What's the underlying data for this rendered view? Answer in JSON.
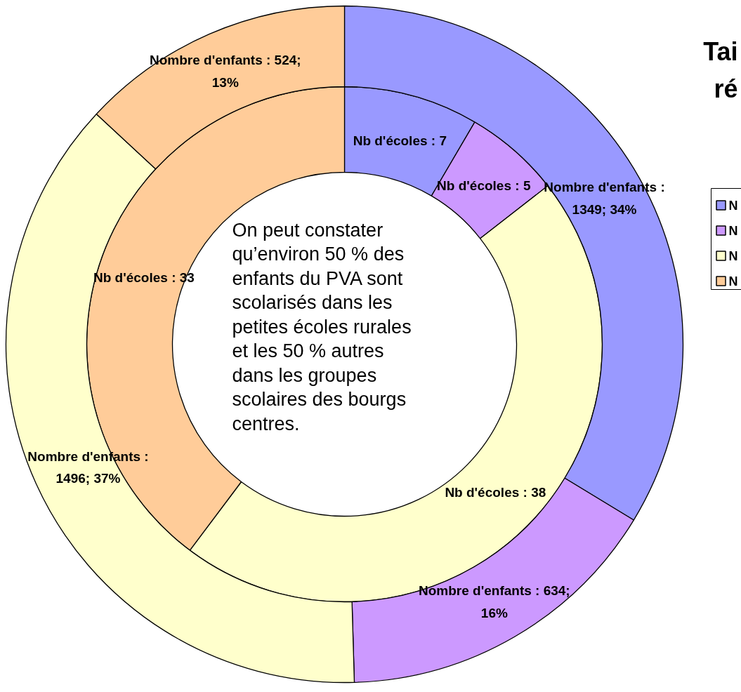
{
  "chart_data": {
    "type": "donut",
    "title": "Tai\nré",
    "categories": [
      "N",
      "N",
      "N",
      "N"
    ],
    "colors": [
      "#9999ff",
      "#cc99ff",
      "#ffffcc",
      "#ffcc99"
    ],
    "legend": "right",
    "series": [
      {
        "values": [
          7,
          5,
          38,
          33
        ],
        "value_labels": [
          "Nb d'écoles : 7",
          "Nb d'écoles : 5",
          "Nb d'écoles : 38",
          "Nb d'écoles : 33"
        ]
      },
      {
        "values": [
          1349,
          634,
          1496,
          524
        ],
        "value_labels": [
          "Nombre d'enfants :\n1349; 34%",
          "Nombre d'enfants : 634;\n16%",
          "Nombre d'enfants :\n1496; 37%",
          "Nombre d'enfants : 524;\n13%"
        ]
      }
    ],
    "annotations": [
      "On peut constater\nqu’environ 50 % des\nenfants du PVA sont\nscolarisés dans les\npetites écoles rurales\net les 50 % autres\ndans les groupes\nscolaires des bourgs\ncentres."
    ]
  }
}
